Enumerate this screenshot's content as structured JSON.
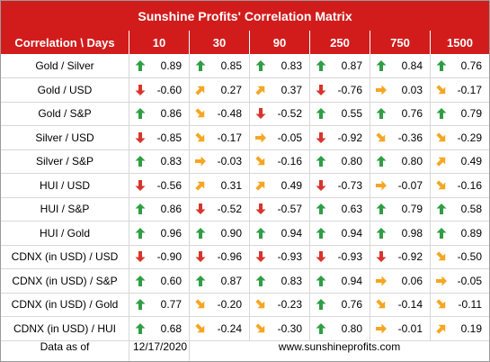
{
  "title": "Sunshine Profits' Correlation Matrix",
  "header": {
    "corner": "Correlation \\ Days",
    "periods": [
      "10",
      "30",
      "90",
      "250",
      "750",
      "1500"
    ]
  },
  "colors": {
    "header_bg": "#d21c1c",
    "arrow_up": "#2f9e44",
    "arrow_down": "#d9342b",
    "arrow_diag": "#f5a623"
  },
  "chart_data": {
    "type": "table",
    "title": "Sunshine Profits' Correlation Matrix",
    "columns": [
      "10",
      "30",
      "90",
      "250",
      "750",
      "1500"
    ],
    "rows": [
      {
        "label": "Gold / Silver",
        "values": [
          "0.89",
          "0.85",
          "0.83",
          "0.87",
          "0.84",
          "0.76"
        ],
        "arrows": [
          "up",
          "up",
          "up",
          "up",
          "up",
          "up"
        ]
      },
      {
        "label": "Gold / USD",
        "values": [
          "-0.60",
          "0.27",
          "0.37",
          "-0.76",
          "0.03",
          "-0.17"
        ],
        "arrows": [
          "down",
          "up-right",
          "up-right",
          "down",
          "right",
          "down-right"
        ]
      },
      {
        "label": "Gold / S&P",
        "values": [
          "0.86",
          "-0.48",
          "-0.52",
          "0.55",
          "0.76",
          "0.79"
        ],
        "arrows": [
          "up",
          "down-right",
          "down",
          "up",
          "up",
          "up"
        ]
      },
      {
        "label": "Silver / USD",
        "values": [
          "-0.85",
          "-0.17",
          "-0.05",
          "-0.92",
          "-0.36",
          "-0.29"
        ],
        "arrows": [
          "down",
          "down-right",
          "right",
          "down",
          "down-right",
          "down-right"
        ]
      },
      {
        "label": "Silver / S&P",
        "values": [
          "0.83",
          "-0.03",
          "-0.16",
          "0.80",
          "0.80",
          "0.49"
        ],
        "arrows": [
          "up",
          "right",
          "down-right",
          "up",
          "up",
          "up-right"
        ]
      },
      {
        "label": "HUI / USD",
        "values": [
          "-0.56",
          "0.31",
          "0.49",
          "-0.73",
          "-0.07",
          "-0.16"
        ],
        "arrows": [
          "down",
          "up-right",
          "up-right",
          "down",
          "right",
          "down-right"
        ]
      },
      {
        "label": "HUI / S&P",
        "values": [
          "0.86",
          "-0.52",
          "-0.57",
          "0.63",
          "0.79",
          "0.58"
        ],
        "arrows": [
          "up",
          "down",
          "down",
          "up",
          "up",
          "up"
        ]
      },
      {
        "label": "HUI / Gold",
        "values": [
          "0.96",
          "0.90",
          "0.94",
          "0.94",
          "0.98",
          "0.89"
        ],
        "arrows": [
          "up",
          "up",
          "up",
          "up",
          "up",
          "up"
        ]
      },
      {
        "label": "CDNX (in USD) / USD",
        "values": [
          "-0.90",
          "-0.96",
          "-0.93",
          "-0.93",
          "-0.92",
          "-0.50"
        ],
        "arrows": [
          "down",
          "down",
          "down",
          "down",
          "down",
          "down-right"
        ]
      },
      {
        "label": "CDNX (in USD) / S&P",
        "values": [
          "0.60",
          "0.87",
          "0.83",
          "0.94",
          "0.06",
          "-0.05"
        ],
        "arrows": [
          "up",
          "up",
          "up",
          "up",
          "right",
          "right"
        ]
      },
      {
        "label": "CDNX (in USD) / Gold",
        "values": [
          "0.77",
          "-0.20",
          "-0.23",
          "0.76",
          "-0.14",
          "-0.11"
        ],
        "arrows": [
          "up",
          "down-right",
          "down-right",
          "up",
          "down-right",
          "down-right"
        ]
      },
      {
        "label": "CDNX (in USD) / HUI",
        "values": [
          "0.68",
          "-0.24",
          "-0.30",
          "0.80",
          "-0.01",
          "0.19"
        ],
        "arrows": [
          "up",
          "down-right",
          "down-right",
          "up",
          "right",
          "up-right"
        ]
      }
    ]
  },
  "footer": {
    "label": "Data as of",
    "date": "12/17/2020",
    "site": "www.sunshineprofits.com"
  }
}
